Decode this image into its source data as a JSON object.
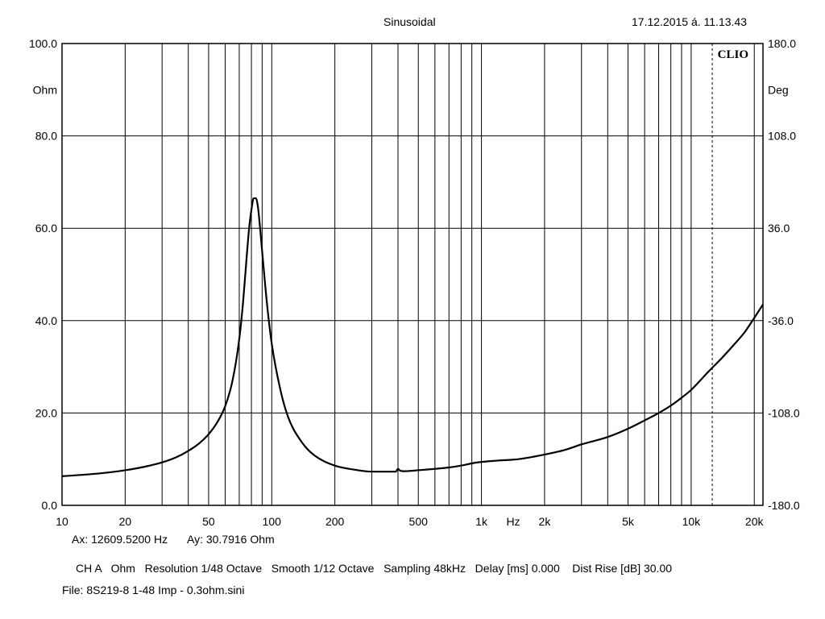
{
  "header": {
    "title": "Sinusoidal",
    "timestamp": "17.12.2015 á. 11.13.43",
    "brand": "CLIO"
  },
  "cursor_readout": {
    "ax": "Ax: 12609.5200 Hz",
    "ay": "Ay: 30.7916 Ohm"
  },
  "settings_line": "CH A   Ohm   Resolution 1/48 Octave   Smooth 1/12 Octave   Sampling 48kHz   Delay [ms] 0.000    Dist Rise [dB] 30.00",
  "file_line": "File: 8S219-8 1-48 Imp - 0.3ohm.sini",
  "colors": {
    "background": "#ffffff",
    "grid": "#000000",
    "curve": "#000000"
  },
  "chart_data": {
    "type": "line",
    "x_scale": "log",
    "xlim": [
      10,
      22000
    ],
    "ylim": [
      0,
      100
    ],
    "y2lim": [
      -180,
      180
    ],
    "grid": true,
    "xlabel": "Hz",
    "ylabel": "Ohm",
    "y2label": "Deg",
    "x_ticks": [
      {
        "value": 10,
        "label": "10"
      },
      {
        "value": 20,
        "label": "20"
      },
      {
        "value": 50,
        "label": "50"
      },
      {
        "value": 100,
        "label": "100"
      },
      {
        "value": 200,
        "label": "200"
      },
      {
        "value": 500,
        "label": "500"
      },
      {
        "value": 1000,
        "label": "1k"
      },
      {
        "value": 2000,
        "label": "2k"
      },
      {
        "value": 5000,
        "label": "5k"
      },
      {
        "value": 10000,
        "label": "10k"
      },
      {
        "value": 20000,
        "label": "20k"
      }
    ],
    "y_ticks": [
      {
        "value": 0,
        "label": "0.0"
      },
      {
        "value": 20,
        "label": "20.0"
      },
      {
        "value": 40,
        "label": "40.0"
      },
      {
        "value": 60,
        "label": "60.0"
      },
      {
        "value": 80,
        "label": "80.0"
      },
      {
        "value": 100,
        "label": "100.0"
      }
    ],
    "y2_ticks": [
      {
        "value": -180,
        "label": "-180.0"
      },
      {
        "value": -108,
        "label": "-108.0"
      },
      {
        "value": -36,
        "label": "-36.0"
      },
      {
        "value": 36,
        "label": "36.0"
      },
      {
        "value": 108,
        "label": "108.0"
      },
      {
        "value": 180,
        "label": "180.0"
      }
    ],
    "cursor_x": 12609.52,
    "series": [
      {
        "x": [
          10,
          15,
          20,
          25,
          30,
          35,
          40,
          45,
          50,
          55,
          60,
          65,
          70,
          73,
          76,
          78,
          80,
          82,
          84,
          86,
          88,
          90,
          95,
          100,
          110,
          120,
          140,
          160,
          200,
          250,
          300,
          350,
          390,
          400,
          410,
          430,
          500,
          600,
          700,
          800,
          900,
          1000,
          1200,
          1500,
          2000,
          2500,
          3000,
          4000,
          5000,
          6000,
          7000,
          8000,
          9000,
          10000,
          12000,
          14000,
          16000,
          18000,
          20000,
          22000
        ],
        "y": [
          6.3,
          6.9,
          7.6,
          8.4,
          9.3,
          10.4,
          11.8,
          13.4,
          15.4,
          18.0,
          21.5,
          27.0,
          36.0,
          44.0,
          54.0,
          60.0,
          64.0,
          66.5,
          66.5,
          64.5,
          60.0,
          55.0,
          43.5,
          35.0,
          25.0,
          19.0,
          13.5,
          10.8,
          8.6,
          7.7,
          7.3,
          7.3,
          7.3,
          7.9,
          7.5,
          7.4,
          7.6,
          7.9,
          8.2,
          8.6,
          9.1,
          9.4,
          9.7,
          10.0,
          11.0,
          12.0,
          13.2,
          14.8,
          16.6,
          18.4,
          20.0,
          21.6,
          23.3,
          25.0,
          28.8,
          31.9,
          34.8,
          37.5,
          40.6,
          43.5
        ]
      }
    ]
  }
}
